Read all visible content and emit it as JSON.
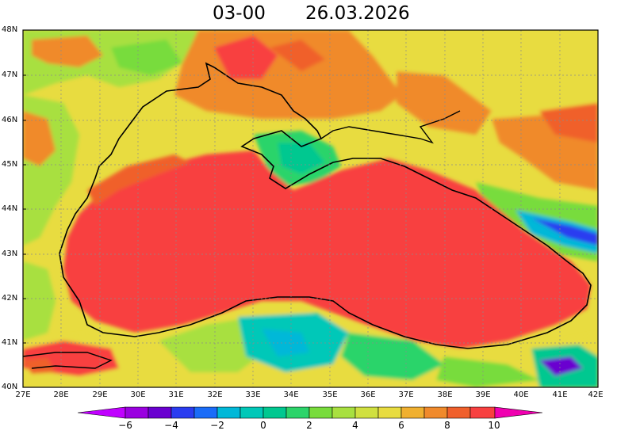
{
  "title": {
    "time": "03-00",
    "date": "26.03.2026"
  },
  "map": {
    "region": "Black Sea",
    "lat_labels": [
      "48N",
      "47N",
      "46N",
      "45N",
      "44N",
      "43N",
      "42N",
      "41N",
      "40N"
    ],
    "lon_labels": [
      "27E",
      "28E",
      "29E",
      "30E",
      "31E",
      "32E",
      "33E",
      "34E",
      "35E",
      "36E",
      "37E",
      "38E",
      "39E",
      "40E",
      "41E",
      "42E"
    ],
    "lat_range": [
      40,
      48
    ],
    "lon_range": [
      27,
      42
    ],
    "grid": true
  },
  "colorbar": {
    "labels": [
      "-6",
      "-4",
      "-2",
      "0",
      "2",
      "4",
      "6",
      "8",
      "10"
    ],
    "colors": {
      "lt_-6": "#c000ff",
      "-6_-5": "#9a00e0",
      "-5_-4": "#6a00d0",
      "-4_-3": "#2a3cf0",
      "-3_-2": "#1a6cf8",
      "-2_-1": "#00b8d8",
      "-1_0": "#00c8b8",
      "0_1": "#00c890",
      "1_2": "#2cd46a",
      "2_3": "#78dc3c",
      "3_4": "#a8e040",
      "4_5": "#d0e040",
      "5_6": "#e8dc40",
      "6_7": "#f0b030",
      "7_8": "#f08a2c",
      "8_9": "#f0602c",
      "9_10": "#f84040",
      "gt_10": "#f000b0"
    }
  }
}
